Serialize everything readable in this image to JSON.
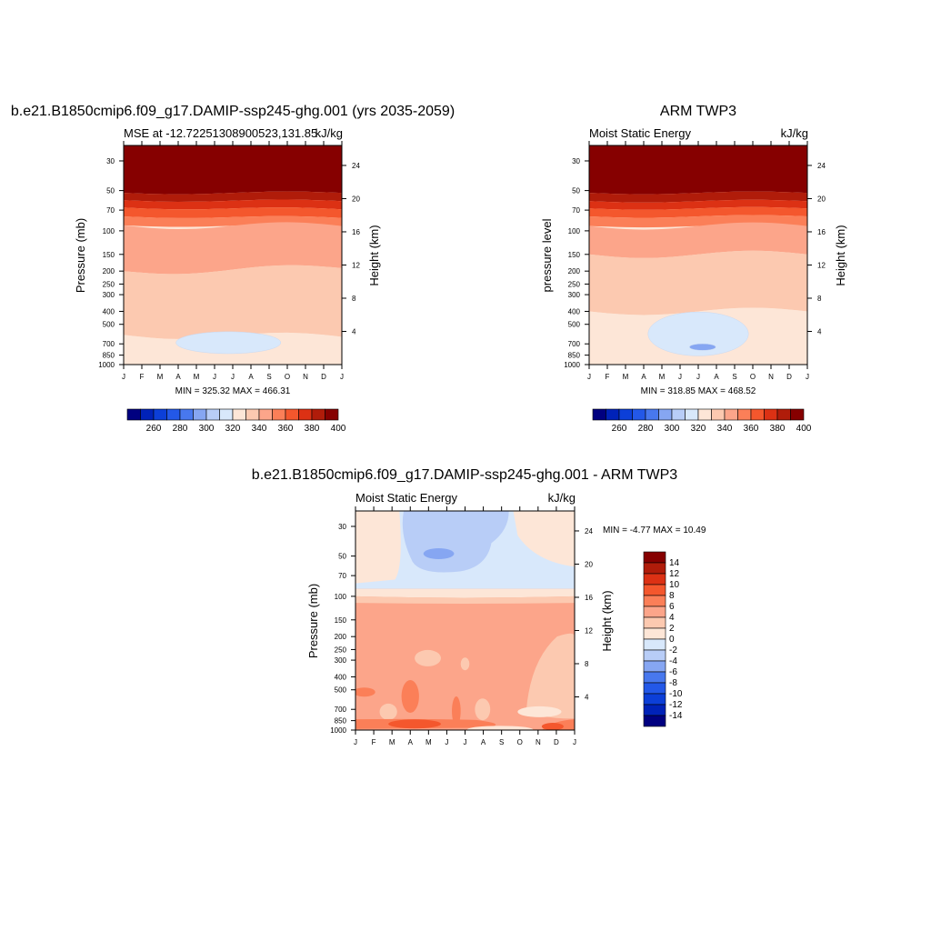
{
  "chart_data": [
    {
      "type": "heatmap",
      "title": "b.e21.B1850cmip6.f09_g17.DAMIP-ssp245-ghg.001 (yrs 2035-2059)",
      "subtitle_left": "MSE at -12.72251308900523,131.85",
      "subtitle_right": "kJ/kg",
      "ylabel": "Pressure (mb)",
      "ylabel_right": "Height (km)",
      "x_ticks": [
        "J",
        "F",
        "M",
        "A",
        "M",
        "J",
        "J",
        "A",
        "S",
        "O",
        "N",
        "D",
        "J"
      ],
      "y_ticks": [
        30,
        50,
        70,
        100,
        150,
        200,
        250,
        300,
        400,
        500,
        700,
        850,
        1000
      ],
      "y_right_ticks": [
        24,
        20,
        16,
        12,
        8,
        4
      ],
      "stats": "MIN = 325.32 MAX = 466.31",
      "colorbar": {
        "orientation": "horizontal",
        "labels": [
          "260",
          "280",
          "300",
          "320",
          "340",
          "360",
          "380",
          "400"
        ],
        "colors": [
          "#000080",
          "#0022b8",
          "#0c3fd8",
          "#2358e8",
          "#4878ee",
          "#86a6f2",
          "#b8cdf7",
          "#d8e8fb",
          "#fde6d7",
          "#fcc9b0",
          "#fca58a",
          "#fb7f58",
          "#f4572d",
          "#dc3114",
          "#b01c0a",
          "#860000"
        ]
      },
      "bands": [
        {
          "color": "#860000",
          "left": [
            0,
            52
          ],
          "right": [
            0,
            52
          ]
        },
        {
          "color": "#b01c0a",
          "left": [
            52,
            59
          ],
          "right": [
            52,
            60
          ]
        },
        {
          "color": "#dc3114",
          "left": [
            59,
            67
          ],
          "right": [
            60,
            69
          ]
        },
        {
          "color": "#f4572d",
          "left": [
            67,
            78
          ],
          "right": [
            69,
            80
          ]
        },
        {
          "color": "#fb7f58",
          "left": [
            78,
            91
          ],
          "right": [
            80,
            92
          ]
        },
        {
          "color": "#fca58a",
          "left": [
            91,
            200
          ],
          "right": [
            92,
            190
          ]
        },
        {
          "color": "#fcc9b0",
          "left": [
            200,
            600
          ],
          "right": [
            190,
            620
          ]
        },
        {
          "color": "#fde6d7",
          "left": [
            600,
            1000
          ],
          "right": [
            620,
            1000
          ]
        }
      ],
      "blob": {
        "color": "#d8e8fb",
        "cx": 0.48,
        "cy": 0.9,
        "rx": 0.24,
        "ry": 0.05
      }
    },
    {
      "type": "heatmap",
      "title": "ARM TWP3",
      "subtitle_left": "Moist Static Energy",
      "subtitle_right": "kJ/kg",
      "ylabel": "pressure level",
      "ylabel_right": "Height (km)",
      "x_ticks": [
        "J",
        "F",
        "M",
        "A",
        "M",
        "J",
        "J",
        "A",
        "S",
        "O",
        "N",
        "D",
        "J"
      ],
      "y_ticks": [
        30,
        50,
        70,
        100,
        150,
        200,
        250,
        300,
        400,
        500,
        700,
        850,
        1000
      ],
      "y_right_ticks": [
        24,
        20,
        16,
        12,
        8,
        4
      ],
      "stats": "MIN = 318.85 MAX = 468.52",
      "colorbar": {
        "orientation": "horizontal",
        "labels": [
          "260",
          "280",
          "300",
          "320",
          "340",
          "360",
          "380",
          "400"
        ],
        "colors": [
          "#000080",
          "#0022b8",
          "#0c3fd8",
          "#2358e8",
          "#4878ee",
          "#86a6f2",
          "#b8cdf7",
          "#d8e8fb",
          "#fde6d7",
          "#fcc9b0",
          "#fca58a",
          "#fb7f58",
          "#f4572d",
          "#dc3114",
          "#b01c0a",
          "#860000"
        ]
      },
      "bands": [
        {
          "color": "#860000",
          "left": [
            0,
            52
          ],
          "right": [
            0,
            52
          ]
        },
        {
          "color": "#b01c0a",
          "left": [
            52,
            60
          ],
          "right": [
            52,
            60
          ]
        },
        {
          "color": "#dc3114",
          "left": [
            60,
            68
          ],
          "right": [
            60,
            68
          ]
        },
        {
          "color": "#f4572d",
          "left": [
            68,
            78
          ],
          "right": [
            68,
            78
          ]
        },
        {
          "color": "#fb7f58",
          "left": [
            78,
            92
          ],
          "right": [
            78,
            92
          ]
        },
        {
          "color": "#fca58a",
          "left": [
            92,
            150
          ],
          "right": [
            92,
            150
          ]
        },
        {
          "color": "#fcc9b0",
          "left": [
            150,
            400
          ],
          "right": [
            150,
            400
          ]
        },
        {
          "color": "#fde6d7",
          "left": [
            400,
            1000
          ],
          "right": [
            400,
            1000
          ]
        }
      ],
      "blob": {
        "color": "#d8e8fb",
        "cx": 0.5,
        "cy": 0.86,
        "rx": 0.23,
        "ry": 0.1
      },
      "blob2": {
        "color": "#86a6f2",
        "cx": 0.52,
        "cy": 0.92,
        "rx": 0.06,
        "ry": 0.015
      }
    },
    {
      "type": "heatmap",
      "title": "b.e21.B1850cmip6.f09_g17.DAMIP-ssp245-ghg.001 - ARM TWP3",
      "subtitle_left": "Moist Static Energy",
      "subtitle_right": "kJ/kg",
      "ylabel": "Pressure (mb)",
      "ylabel_right": "Height (km)",
      "x_ticks": [
        "J",
        "F",
        "M",
        "A",
        "M",
        "J",
        "J",
        "A",
        "S",
        "O",
        "N",
        "D",
        "J"
      ],
      "y_ticks": [
        30,
        50,
        70,
        100,
        150,
        200,
        250,
        300,
        400,
        500,
        700,
        850,
        1000
      ],
      "y_right_ticks": [
        24,
        20,
        16,
        12,
        8,
        4
      ],
      "stats": "MIN =  -4.77 MAX =  10.49",
      "colorbar": {
        "orientation": "vertical",
        "labels": [
          "14",
          "12",
          "10",
          "8",
          "6",
          "4",
          "2",
          "0",
          "-2",
          "-4",
          "-6",
          "-8",
          "-10",
          "-12",
          "-14"
        ],
        "colors": [
          "#860000",
          "#b01c0a",
          "#dc3114",
          "#f4572d",
          "#fb7f58",
          "#fca58a",
          "#fcc9b0",
          "#fde6d7",
          "#d8e8fb",
          "#b8cdf7",
          "#86a6f2",
          "#4878ee",
          "#2358e8",
          "#0c3fd8",
          "#0022b8",
          "#000080"
        ]
      }
    }
  ]
}
